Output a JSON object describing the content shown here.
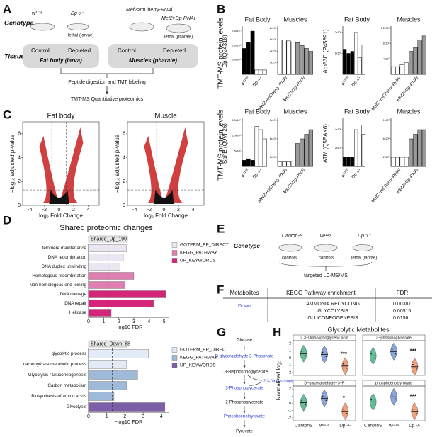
{
  "A": {
    "letter": "A",
    "genotype_label": "Genotype",
    "tissue_label": "Tissue",
    "genotypes": [
      "w¹¹¹⁸",
      "Dp⁻/⁻",
      "Mef2>mCherry-RNAi",
      "Mef2>Dp-RNAi"
    ],
    "lethal": [
      "lethal (larvae)",
      "lethal (pharate)"
    ],
    "boxes": [
      {
        "control": "Control",
        "depleted": "Depleted",
        "tissue": "Fat body (larva)"
      },
      {
        "control": "Control",
        "depleted": "Depleted",
        "tissue": "Muscles (pharate)"
      }
    ],
    "steps": [
      "Peptide digestion and TMT labeling",
      "TMT-MS Quantitative proteomics"
    ]
  },
  "B": {
    "letter": "B",
    "ylabel": "TMT-MS protein levels",
    "fat_groups": [
      "w¹¹¹⁸",
      "Dp -/-"
    ],
    "muscle_groups": [
      "Mef2>mCherry-RNAi",
      "Mef2>Dp-RNAi"
    ],
    "charts": [
      {
        "type": "bar",
        "protein": "Dp (Q24318)",
        "tissue": "Fat Body",
        "ylim": [
          0,
          16000000
        ],
        "yticks": [
          {
            "value": 5000000,
            "label": "5.0x10⁶"
          },
          {
            "value": 10000000,
            "label": "1.0x10⁷"
          },
          {
            "value": 15000000,
            "label": "1.5x10⁷"
          }
        ],
        "series": [
          {
            "color": "#000000",
            "values": [
              9000000,
              11000000,
              15000000
            ]
          },
          {
            "color": "#ffffff",
            "values": [
              1500000,
              1500000,
              1500000
            ]
          }
        ]
      },
      {
        "type": "bar",
        "tissue": "Muscles",
        "ylim": [
          0,
          8000000
        ],
        "yticks": [
          {
            "value": 2000000,
            "label": "2x10⁶"
          },
          {
            "value": 4000000,
            "label": "4x10⁶"
          },
          {
            "value": 6000000,
            "label": "6x10⁶"
          },
          {
            "value": 8000000,
            "label": "8x10⁶"
          }
        ],
        "series": [
          {
            "color": "#ffffff",
            "values": [
              6000000,
              6000000,
              5800000,
              5600000
            ]
          },
          {
            "color": "#9a9a9a",
            "values": [
              5500000,
              5000000,
              4500000,
              4000000
            ]
          }
        ]
      },
      {
        "type": "bar",
        "protein": "Arp53D (P45891)",
        "tissue": "Fat Body",
        "ylim": [
          0,
          2200000
        ],
        "yticks": [
          {
            "value": 1000000,
            "label": "1x10⁶"
          },
          {
            "value": 2000000,
            "label": "2x10⁶"
          }
        ],
        "series": [
          {
            "color": "#000000",
            "values": [
              1200000,
              1000000,
              1100000
            ]
          },
          {
            "color": "#ffffff",
            "values": [
              2000000,
              800000,
              1400000
            ]
          }
        ]
      },
      {
        "type": "bar",
        "tissue": "Muscles",
        "ylim": [
          0,
          1200000
        ],
        "yticks": [
          {
            "value": 400000,
            "label": "4x10⁵"
          },
          {
            "value": 800000,
            "label": "8x10⁵"
          },
          {
            "value": 1200000,
            "label": "1.2x10⁶"
          }
        ],
        "series": [
          {
            "color": "#ffffff",
            "values": [
              200000,
              200000,
              250000,
              300000
            ]
          },
          {
            "color": "#9a9a9a",
            "values": [
              600000,
              700000,
              900000,
              1000000
            ]
          }
        ]
      },
      {
        "type": "bar",
        "protein": "SpnE (Q9VF26)",
        "tissue": "Fat Body",
        "ylim": [
          0,
          1500000
        ],
        "yticks": [
          {
            "value": 500000,
            "label": "5x10⁵"
          },
          {
            "value": 1000000,
            "label": "1.0x10⁶"
          },
          {
            "value": 1500000,
            "label": "1.5x10⁶"
          }
        ],
        "series": [
          {
            "color": "#000000",
            "values": [
              200000,
              250000,
              200000
            ]
          },
          {
            "color": "#ffffff",
            "values": [
              1300000,
              1200000,
              900000
            ]
          }
        ]
      },
      {
        "type": "bar",
        "tissue": "Muscles",
        "ylim": [
          0,
          1000000
        ],
        "yticks": [
          {
            "value": 200000,
            "label": "2x10⁵"
          },
          {
            "value": 600000,
            "label": "6x10⁵"
          },
          {
            "value": 1000000,
            "label": "1x10⁶"
          }
        ],
        "series": [
          {
            "color": "#ffffff",
            "values": [
              100000,
              100000,
              100000,
              120000
            ]
          },
          {
            "color": "#9a9a9a",
            "values": [
              500000,
              600000,
              700000,
              800000
            ]
          }
        ]
      },
      {
        "type": "bar",
        "protein": "ATM (Q5EAK6)",
        "tissue": "Fat Body",
        "ylim": [
          0,
          500000
        ],
        "yticks": [
          {
            "value": 200000,
            "label": "2x10⁵"
          },
          {
            "value": 400000,
            "label": "4x10⁵"
          }
        ],
        "series": [
          {
            "color": "#000000",
            "values": [
              100000,
              100000,
              100000
            ]
          },
          {
            "color": "#ffffff",
            "values": [
              400000,
              450000,
              350000
            ]
          }
        ]
      },
      {
        "type": "bar",
        "tissue": "Muscles",
        "ylim": [
          0,
          1000000
        ],
        "yticks": [
          {
            "value": 200000,
            "label": "2x10⁵"
          },
          {
            "value": 600000,
            "label": "6x10⁵"
          },
          {
            "value": 1000000,
            "label": "1x10⁶"
          }
        ],
        "series": [
          {
            "color": "#ffffff",
            "values": [
              200000,
              200000,
              200000,
              200000
            ]
          },
          {
            "color": "#9a9a9a",
            "values": [
              600000,
              700000,
              800000,
              800000
            ]
          }
        ]
      }
    ]
  },
  "C": {
    "letter": "C",
    "xlabel": "log₂ Fold Change",
    "ylabel": "−log₁₀ adjusted p-value",
    "charts": [
      {
        "type": "scatter",
        "title": "Fat body",
        "xlim": [
          -5,
          5.5
        ],
        "ylim": [
          0,
          7
        ],
        "xticks": [
          -4,
          -2,
          0,
          2,
          4
        ],
        "yticks": [
          0,
          2,
          4,
          6
        ]
      },
      {
        "type": "scatter",
        "title": "Muscle",
        "xlim": [
          -5,
          5.5
        ],
        "ylim": [
          0,
          7
        ],
        "xticks": [
          -4,
          -2,
          0,
          2,
          4
        ],
        "yticks": [
          0,
          2,
          4,
          6
        ]
      }
    ]
  },
  "D": {
    "letter": "D",
    "title": "Shared proteomic changes",
    "xlabel": "−log10 FDR",
    "charts": [
      {
        "type": "bar",
        "title": "Shared_Up_190",
        "xlim": [
          0,
          5.3
        ],
        "xticks": [
          0,
          1,
          2,
          3,
          4,
          5
        ],
        "threshold": 1.3,
        "categories": [
          "telomere maintenance",
          "DNA recombination",
          "DNA duplex unwinding",
          "Homologous recombination",
          "Non-homologous end-joining",
          "DNA damage",
          "DNA repair",
          "Helicase"
        ],
        "series": [
          {
            "name": "GOTERM_BP_DIRECT",
            "color": "#ece6f2",
            "values": [
              2.5,
              2.3,
              2.1,
              null,
              null,
              null,
              null,
              null
            ]
          },
          {
            "name": "KEGG_PATHWAY",
            "color": "#df7fb0",
            "values": [
              null,
              null,
              null,
              3.0,
              2.4,
              null,
              null,
              null
            ]
          },
          {
            "name": "UP_KEYWORDS",
            "color": "#d4257a",
            "values": [
              null,
              null,
              null,
              null,
              null,
              5.1,
              4.3,
              1.5
            ]
          }
        ]
      },
      {
        "type": "bar",
        "title": "Shared_Down_88",
        "xlim": [
          0,
          4.4
        ],
        "xticks": [
          0,
          1,
          2,
          3,
          4
        ],
        "threshold": 1.3,
        "categories": [
          "glycolytic process",
          "carbohydrate metabolic process",
          "Glycolysis / Gluconeogenesis",
          "Carbon metabolism",
          "Biosynthesis of amino acids",
          "Glycolysis"
        ],
        "series": [
          {
            "name": "GOTERM_BP_DIRECT",
            "color": "#e2ebf6",
            "values": [
              3.3,
              2.1,
              null,
              null,
              null,
              null
            ]
          },
          {
            "name": "KEGG_PATHWAY",
            "color": "#9fb9d8",
            "values": [
              null,
              null,
              2.7,
              2.1,
              1.4,
              null
            ]
          },
          {
            "name": "UP_KEYWORDS",
            "color": "#7d5ea8",
            "values": [
              null,
              null,
              null,
              null,
              null,
              4.2
            ]
          }
        ]
      }
    ]
  },
  "E": {
    "letter": "E",
    "genotype_label": "Genotype",
    "genotypes": [
      "Canton-S",
      "w¹¹¹⁸",
      "Dp⁻/⁻"
    ],
    "notes": [
      "controls",
      "controls",
      "lethal (larvae)"
    ],
    "method": "targeted LC-MS/MS"
  },
  "F": {
    "letter": "F",
    "table": {
      "header": [
        "Metabolites",
        "KEGG Pathway enrichment",
        "FDR"
      ],
      "group": "Down",
      "rows": [
        [
          "AMMONIA RECYCLING",
          "0.00387"
        ],
        [
          "GLYCOLYSIS",
          "0.00515"
        ],
        [
          "GLUCONEOGENESIS",
          "0.0156"
        ]
      ]
    }
  },
  "G": {
    "letter": "G",
    "nodes": [
      "Glucose",
      "D-glyceraldehyde 3-Phosphate",
      "1,3-Bisphosphoglycerate",
      "2,3-Diphosphoglycerate",
      "3-Phosphoglycerate",
      "2-Phosphoglycerate",
      "Phosphoenolpyruvate",
      "Pyruvate"
    ]
  },
  "H": {
    "letter": "H",
    "type": "violin",
    "title": "Glycolytic Metabolites",
    "ylabel": "Normalized log₂",
    "groups": [
      "CantonS",
      "w¹¹¹⁸",
      "Dp -/-"
    ],
    "colors": [
      "#3fae7a",
      "#6b8fd1",
      "#f08a5d"
    ],
    "ylim": [
      -2.4,
      2.4
    ],
    "yticks": [
      -2,
      -1,
      0,
      1,
      2
    ],
    "panels": [
      {
        "title": "2,3−Diphosphoglyceric acid",
        "values": [
          0.6,
          0.5,
          -1.1
        ],
        "annotation": "***"
      },
      {
        "title": "3−phosphoglycerate",
        "values": [
          0.3,
          0.9,
          -1.2
        ],
        "annotation": "***"
      },
      {
        "title": "D−glyceraldehyde−3−P",
        "values": [
          0.1,
          0.7,
          -1.1
        ],
        "annotation": "*"
      },
      {
        "title": "phosphoenolpyruvate",
        "values": [
          0.2,
          0.9,
          -1.1
        ],
        "annotation": "***"
      }
    ]
  }
}
